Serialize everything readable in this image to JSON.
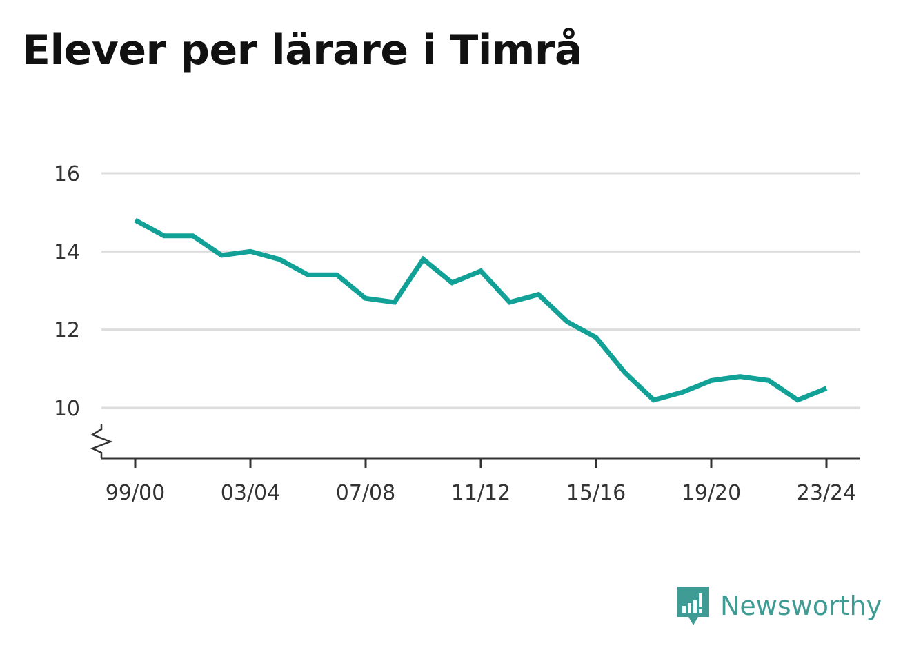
{
  "title": "Elever per lärare i Timrå",
  "brand": {
    "name": "Newsworthy",
    "icon": "newsworthy-logo-icon",
    "color": "#3f9c95"
  },
  "chart_data": {
    "type": "line",
    "title": "Elever per lärare i Timrå",
    "xlabel": "",
    "ylabel": "",
    "x": [
      "99/00",
      "00/01",
      "01/02",
      "02/03",
      "03/04",
      "04/05",
      "05/06",
      "06/07",
      "07/08",
      "08/09",
      "09/10",
      "10/11",
      "11/12",
      "12/13",
      "13/14",
      "14/15",
      "15/16",
      "16/17",
      "17/18",
      "18/19",
      "19/20",
      "20/21",
      "21/22",
      "22/23",
      "23/24"
    ],
    "x_tick_labels": [
      "99/00",
      "03/04",
      "07/08",
      "11/12",
      "15/16",
      "19/20",
      "23/24"
    ],
    "y_tick_labels": [
      "10",
      "12",
      "14",
      "16"
    ],
    "ylim": [
      9,
      16
    ],
    "y_axis_break": true,
    "grid": true,
    "line_color": "#11a197",
    "series": [
      {
        "values": [
          14.8,
          14.4,
          14.4,
          13.9,
          14.0,
          13.8,
          13.4,
          13.4,
          12.8,
          12.7,
          13.8,
          13.2,
          13.5,
          12.7,
          12.9,
          12.2,
          11.8,
          10.9,
          10.2,
          10.4,
          10.7,
          10.8,
          10.7,
          10.2,
          10.5
        ]
      }
    ]
  }
}
